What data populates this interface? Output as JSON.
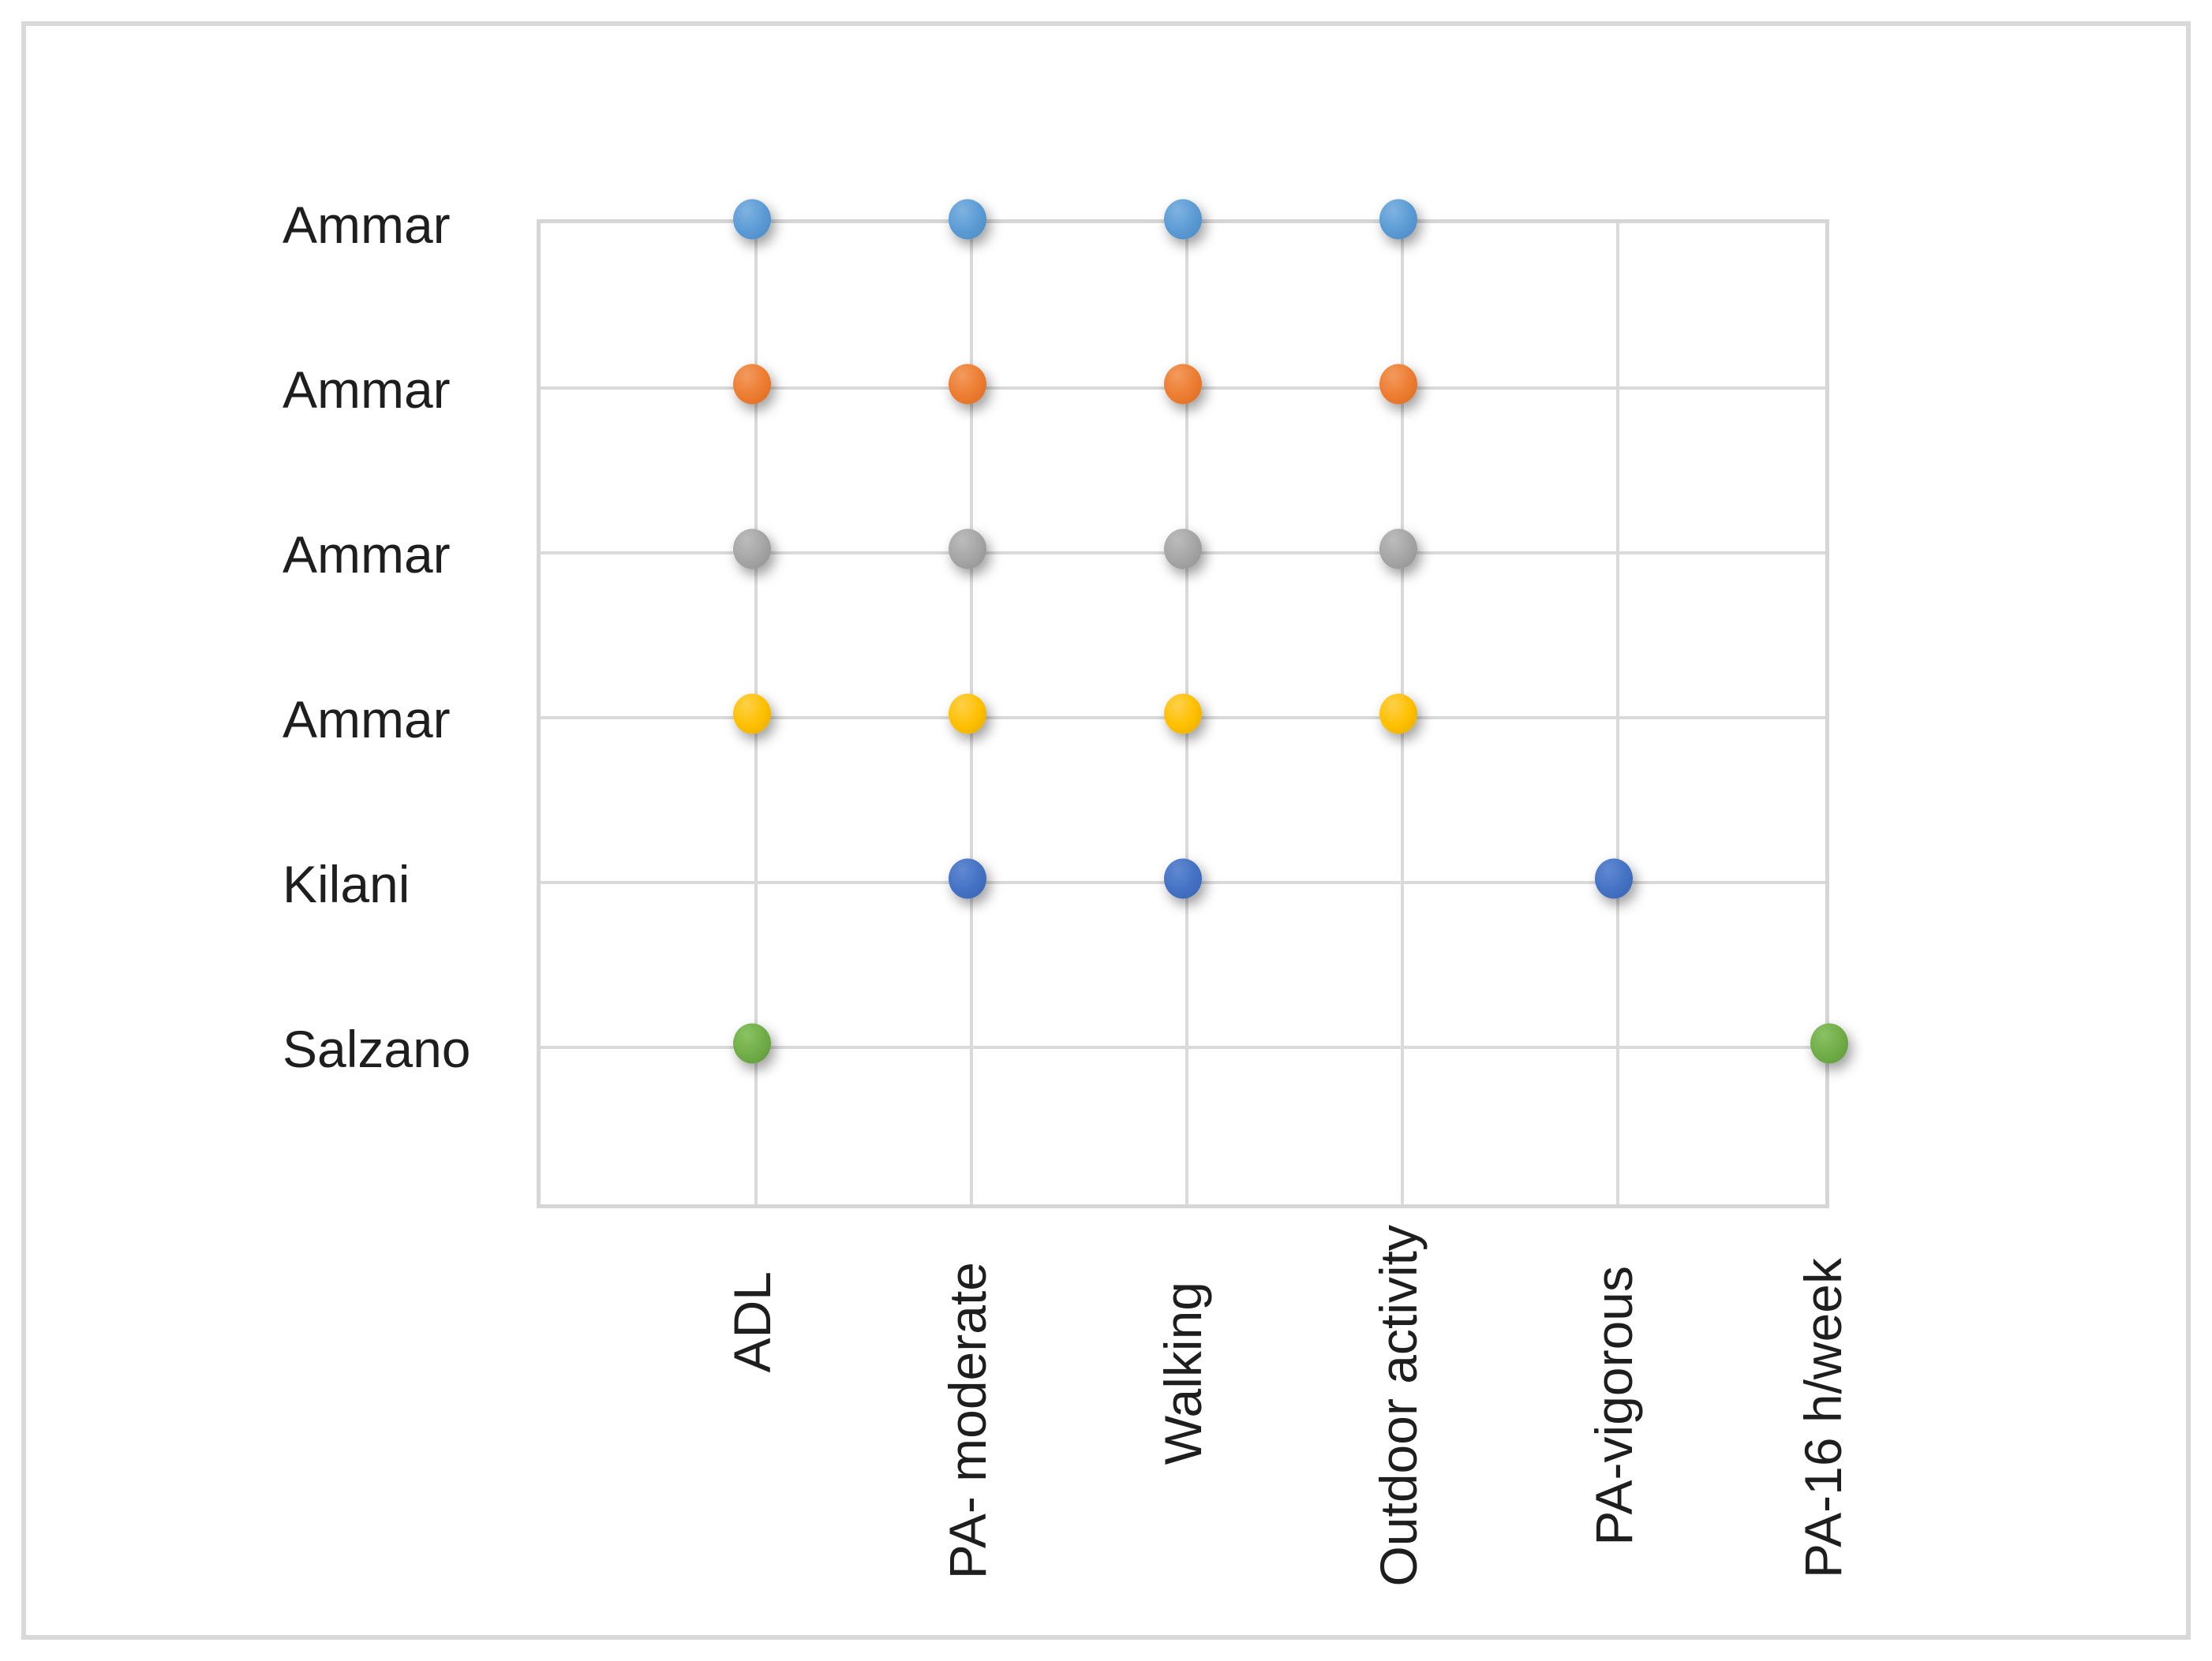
{
  "figure": {
    "background_color": "#FFFFFF",
    "frame_color": "#D9D9D9",
    "gridline_color": "#DADADA",
    "text_color": "#1E1E1E",
    "title": "",
    "legend": "none"
  },
  "chart_data": {
    "type": "scatter",
    "title": "",
    "xlabel": "",
    "ylabel": "",
    "grid": true,
    "x_range": [
      0,
      6
    ],
    "y_range": [
      0,
      6
    ],
    "x_categories": [
      "ADL",
      "PA- moderate",
      "Walking",
      "Outdoor activity",
      "PA-vigorous",
      "PA-16 h/week"
    ],
    "x_category_positions": [
      1,
      2,
      3,
      4,
      5,
      6
    ],
    "y_categories_top_to_bottom": [
      "Ammar",
      "Ammar",
      "Ammar",
      "Ammar",
      "Kilani",
      "Salzano"
    ],
    "series": [
      {
        "name": "Ammar",
        "y": 6,
        "color": "#5B9BD5",
        "color_light": "#7FB3E0",
        "color_dark": "#4A86BF",
        "points_x": [
          "ADL",
          "PA- moderate",
          "Walking",
          "Outdoor activity"
        ]
      },
      {
        "name": "Ammar",
        "y": 5,
        "color": "#ED7D31",
        "color_light": "#F29A5E",
        "color_dark": "#D96920",
        "points_x": [
          "ADL",
          "PA- moderate",
          "Walking",
          "Outdoor activity"
        ]
      },
      {
        "name": "Ammar",
        "y": 4,
        "color": "#A5A5A5",
        "color_light": "#BCBCBC",
        "color_dark": "#8F8F8F",
        "points_x": [
          "ADL",
          "PA- moderate",
          "Walking",
          "Outdoor activity"
        ]
      },
      {
        "name": "Ammar",
        "y": 3,
        "color": "#FFC000",
        "color_light": "#FFD04A",
        "color_dark": "#E2A900",
        "points_x": [
          "ADL",
          "PA- moderate",
          "Walking",
          "Outdoor activity"
        ]
      },
      {
        "name": "Kilani",
        "y": 2,
        "color": "#4472C4",
        "color_light": "#6189D1",
        "color_dark": "#3A62AC",
        "points_x": [
          "PA- moderate",
          "Walking",
          "PA-vigorous"
        ]
      },
      {
        "name": "Salzano",
        "y": 1,
        "color": "#70AD47",
        "color_light": "#8BC264",
        "color_dark": "#5E9639",
        "points_x": [
          "ADL",
          "PA-16 h/week"
        ]
      }
    ]
  }
}
